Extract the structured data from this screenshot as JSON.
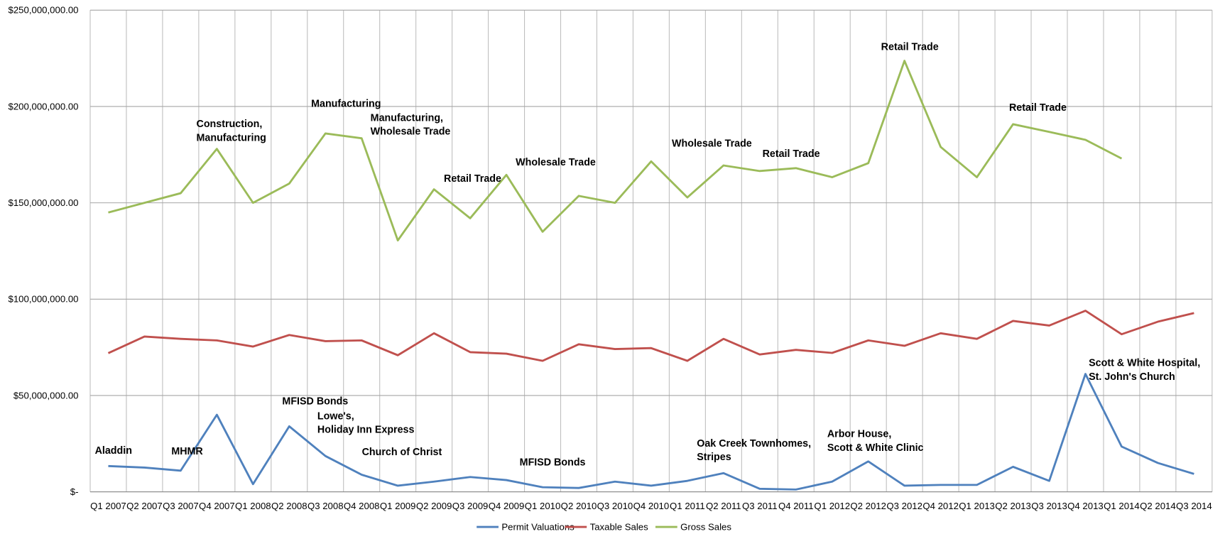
{
  "chart_data": {
    "type": "line",
    "categories": [
      "Q1 2007",
      "Q2 2007",
      "Q3 2007",
      "Q4 2007",
      "Q1 2008",
      "Q2 2008",
      "Q3 2008",
      "Q4 2008",
      "Q1 2009",
      "Q2 2009",
      "Q3 2009",
      "Q4 2009",
      "Q1 2010",
      "Q2 2010",
      "Q3 2010",
      "Q4 2010",
      "Q1 2011",
      "Q2 2011",
      "Q3 2011",
      "Q4 2011",
      "Q1 2012",
      "Q2 2012",
      "Q3 2012",
      "Q4 2012",
      "Q1 2013",
      "Q2 2013",
      "Q3 2013",
      "Q4 2013",
      "Q1 2014",
      "Q2 2014",
      "Q3 2014"
    ],
    "series": [
      {
        "name": "Permit Valuations",
        "color": "#4f81bd",
        "values": [
          13400000,
          12600000,
          11000000,
          40000000,
          4000000,
          34000000,
          18600000,
          8900000,
          3200000,
          5300000,
          7700000,
          6100000,
          2400000,
          2000000,
          5300000,
          3200000,
          5700000,
          9700000,
          1600000,
          1200000,
          5300000,
          15800000,
          3200000,
          3600000,
          3600000,
          13000000,
          5700000,
          61200000,
          23500000,
          15000000,
          9300000
        ]
      },
      {
        "name": "Taxable Sales",
        "color": "#c0504d",
        "values": [
          72000000,
          80600000,
          79400000,
          78600000,
          75400000,
          81400000,
          78200000,
          78600000,
          70900000,
          82300000,
          72500000,
          71700000,
          68000000,
          76600000,
          74100000,
          74600000,
          68000000,
          79400000,
          71300000,
          73700000,
          72100000,
          78600000,
          75800000,
          82300000,
          79400000,
          88700000,
          86300000,
          94000000,
          81800000,
          88300000,
          92800000
        ]
      },
      {
        "name": "Gross Sales",
        "color": "#9bbb59",
        "values": [
          145000000,
          150000000,
          155000000,
          178000000,
          150000000,
          160000000,
          186000000,
          183500000,
          130500000,
          157000000,
          142000000,
          164500000,
          135000000,
          153600000,
          150000000,
          171500000,
          152800000,
          169400000,
          166500000,
          168000000,
          163300000,
          170600000,
          223700000,
          179000000,
          163300000,
          190800000,
          186800000,
          182700000,
          173000000,
          null,
          null
        ]
      }
    ],
    "ylim": [
      0,
      250000000
    ],
    "yticks": [
      {
        "value": 0,
        "label": "$-"
      },
      {
        "value": 50000000,
        "label": "$50,000,000.00"
      },
      {
        "value": 100000000,
        "label": "$100,000,000.00"
      },
      {
        "value": 150000000,
        "label": "$150,000,000.00"
      },
      {
        "value": 200000000,
        "label": "$200,000,000.00"
      },
      {
        "value": 250000000,
        "label": "$250,000,000.00"
      }
    ],
    "grid": true,
    "legend": "bottom",
    "annotations": [
      [
        "Aladdin"
      ],
      [
        "MHMR"
      ],
      [
        "Construction,",
        "Manufacturing"
      ],
      [
        "Manufacturing"
      ],
      [
        "MFISD Bonds"
      ],
      [
        "Lowe's,",
        "Holiday Inn Express"
      ],
      [
        "Manufacturing,",
        "Wholesale Trade"
      ],
      [
        "Church of Christ"
      ],
      [
        "Retail Trade"
      ],
      [
        "Wholesale Trade"
      ],
      [
        "MFISD Bonds"
      ],
      [
        "Wholesale Trade"
      ],
      [
        "Oak Creek Townhomes,",
        "Stripes"
      ],
      [
        "Retail Trade"
      ],
      [
        "Arbor House,",
        "Scott & White Clinic"
      ],
      [
        "Retail Trade"
      ],
      [
        "Retail Trade"
      ],
      [
        "Scott & White Hospital,",
        "St. John's Church"
      ]
    ]
  }
}
